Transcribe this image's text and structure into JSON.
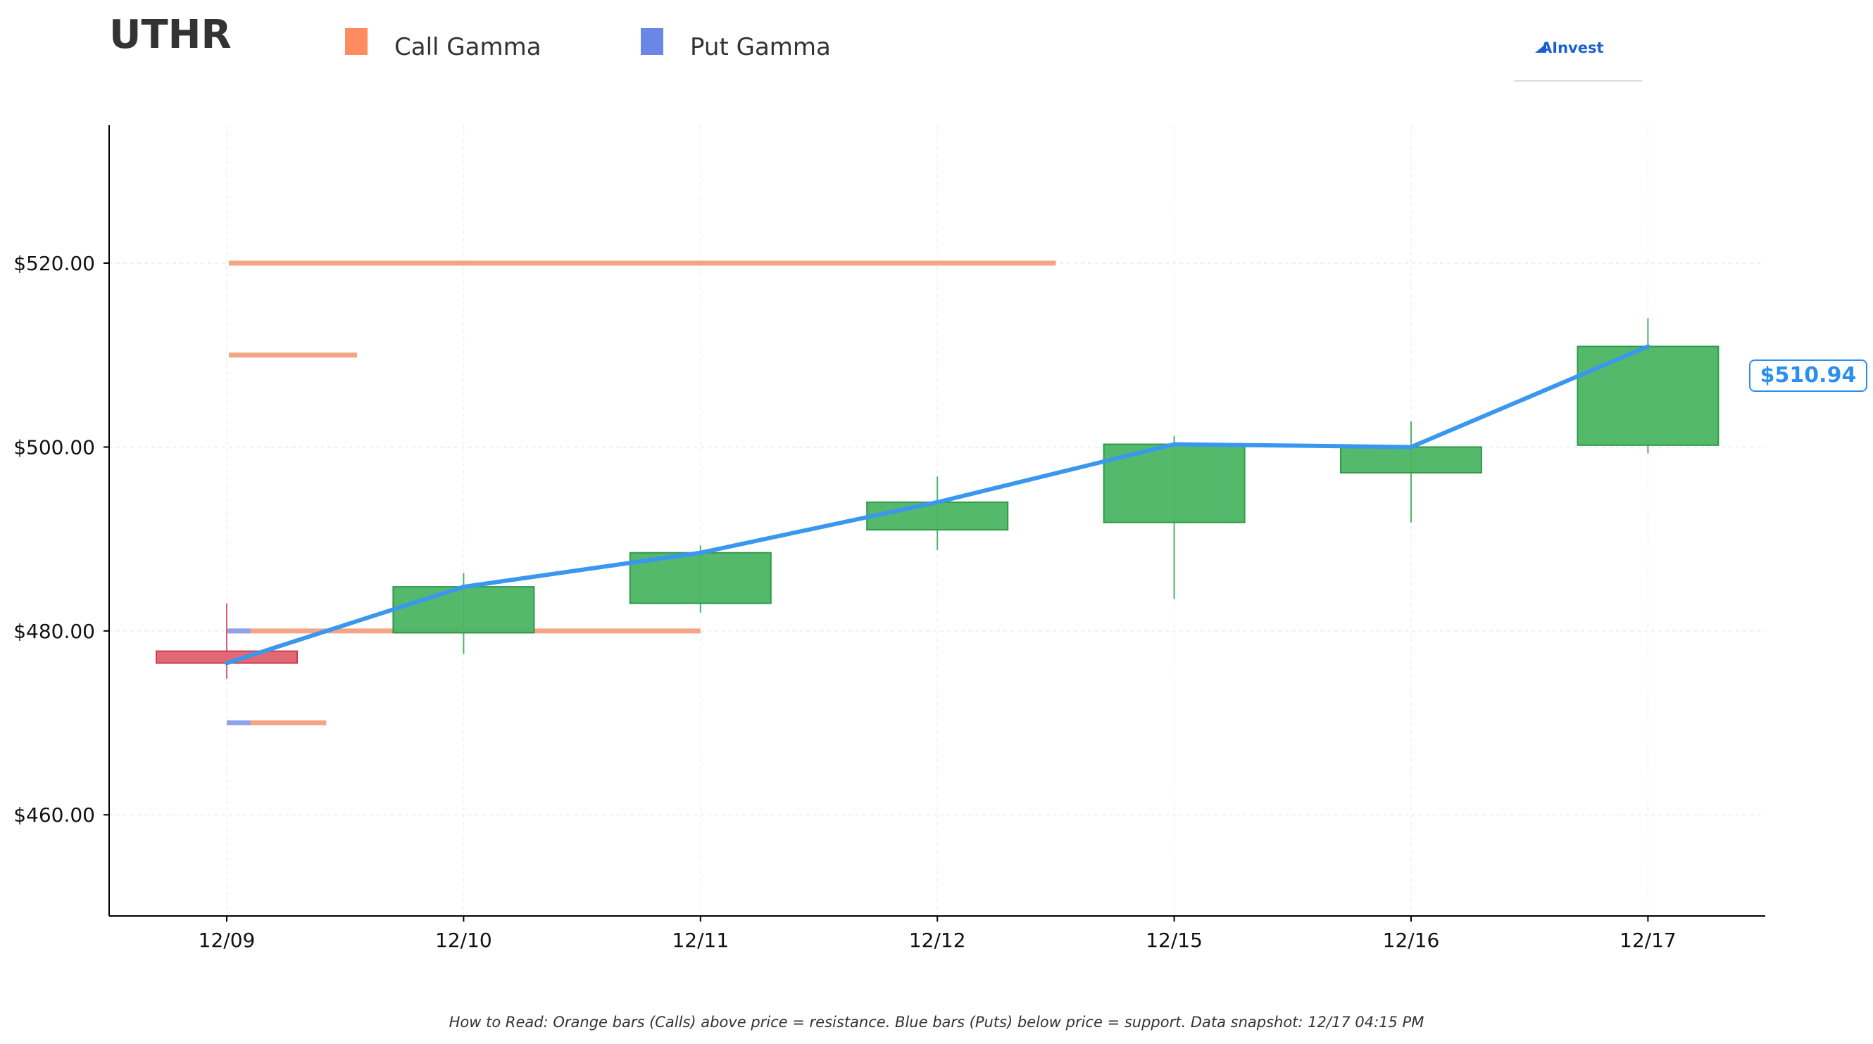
{
  "header": {
    "ticker": "UTHR",
    "brand": "AInvest"
  },
  "legend": [
    {
      "label": "Call Gamma",
      "color": "#ff8c5f"
    },
    {
      "label": "Put Gamma",
      "color": "#6a87e6"
    }
  ],
  "footer_note": "How to Read: Orange bars (Calls) above price = resistance. Blue bars (Puts) below price = support. Data snapshot: 12/17 04:15 PM",
  "current_price_label": "$510.94",
  "colors": {
    "up": "#4cb564",
    "down": "#e0606e",
    "price_line": "#3a97ee",
    "call": "#f4a487",
    "put": "#8ea3ec"
  },
  "chart_data": {
    "type": "candlestick",
    "categories": [
      "12/09",
      "12/10",
      "12/11",
      "12/12",
      "12/15",
      "12/16",
      "12/17"
    ],
    "ylim": [
      449,
      535
    ],
    "yticks": [
      460,
      480,
      500,
      520
    ],
    "ytick_labels": [
      "$460.00",
      "$480.00",
      "$500.00",
      "$520.00"
    ],
    "grid": true,
    "candles": [
      {
        "date": "12/09",
        "open": 477.8,
        "high": 483.0,
        "low": 474.8,
        "close": 476.5
      },
      {
        "date": "12/10",
        "open": 479.8,
        "high": 486.3,
        "low": 477.5,
        "close": 484.8
      },
      {
        "date": "12/11",
        "open": 483.0,
        "high": 489.3,
        "low": 482.0,
        "close": 488.5
      },
      {
        "date": "12/12",
        "open": 491.0,
        "high": 496.8,
        "low": 488.8,
        "close": 494.0
      },
      {
        "date": "12/15",
        "open": 491.8,
        "high": 501.2,
        "low": 483.5,
        "close": 500.3
      },
      {
        "date": "12/16",
        "open": 497.2,
        "high": 502.8,
        "low": 491.8,
        "close": 500.0
      },
      {
        "date": "12/17",
        "open": 500.2,
        "high": 514.0,
        "low": 499.3,
        "close": 510.94
      }
    ],
    "price_line": {
      "name": "",
      "x": [
        "12/09",
        "12/10",
        "12/11",
        "12/12",
        "12/15",
        "12/16",
        "12/17"
      ],
      "y": [
        476.5,
        484.8,
        488.5,
        494.0,
        500.3,
        500.0,
        510.94
      ]
    },
    "gamma_levels": [
      {
        "strike": 520,
        "call_extent": 3.5
      },
      {
        "strike": 510,
        "call_extent": 0.55
      },
      {
        "strike": 480,
        "call_extent": 2.0,
        "put_extent": 0.1
      },
      {
        "strike": 470,
        "call_extent": 0.42,
        "put_extent": 0.1
      }
    ],
    "gamma_extent_unit": "trading days from 12/09"
  }
}
